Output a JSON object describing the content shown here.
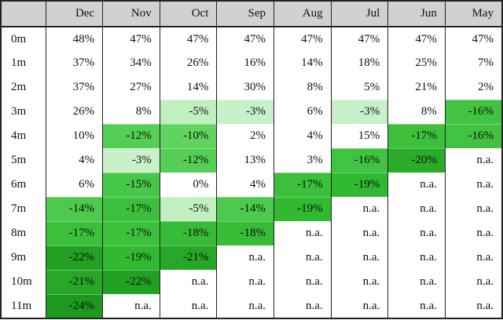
{
  "table": {
    "corner_label": "",
    "na_text": "n.a.",
    "value_suffix": "%",
    "header_bg": "#d1d1d1",
    "border_color": "#222222",
    "text_color": "#111111",
    "positive_bg": "#ffffff",
    "cell_colors": {
      "-3": "#c9f1c9",
      "-5": "#c0efc0",
      "-10": "#60d360",
      "-12": "#54ce54",
      "-14": "#4dca4d",
      "-15": "#47c747",
      "-16": "#41c341",
      "-17": "#3cc03c",
      "-18": "#36bc36",
      "-19": "#31b931",
      "-20": "#2aab2a",
      "-21": "#27a627",
      "-22": "#23a123",
      "-24": "#1d991d"
    }
  },
  "chart_data": {
    "type": "heatmap",
    "title": "",
    "columns": [
      "Dec",
      "Nov",
      "Oct",
      "Sep",
      "Aug",
      "Jul",
      "Jun",
      "May"
    ],
    "rows": [
      "0m",
      "1m",
      "2m",
      "3m",
      "4m",
      "5m",
      "6m",
      "7m",
      "8m",
      "9m",
      "10m",
      "11m"
    ],
    "values": [
      [
        48,
        47,
        47,
        47,
        47,
        47,
        47,
        47
      ],
      [
        37,
        34,
        26,
        16,
        14,
        18,
        25,
        7
      ],
      [
        37,
        27,
        14,
        30,
        8,
        5,
        21,
        2
      ],
      [
        26,
        8,
        -5,
        -3,
        6,
        -3,
        8,
        -16
      ],
      [
        10,
        -12,
        -10,
        2,
        4,
        15,
        -17,
        -16
      ],
      [
        4,
        -3,
        -12,
        13,
        3,
        -16,
        -20,
        null
      ],
      [
        6,
        -15,
        0,
        4,
        -17,
        -19,
        null,
        null
      ],
      [
        -14,
        -17,
        -5,
        -14,
        -19,
        null,
        null,
        null
      ],
      [
        -17,
        -17,
        -18,
        -18,
        null,
        null,
        null,
        null
      ],
      [
        -22,
        -19,
        -21,
        null,
        null,
        null,
        null,
        null
      ],
      [
        -21,
        -22,
        null,
        null,
        null,
        null,
        null,
        null
      ],
      [
        -24,
        null,
        null,
        null,
        null,
        null,
        null,
        null
      ]
    ],
    "cell_format": "percent",
    "na_text": "n.a.",
    "color_scale": {
      "zero_and_positive": "#ffffff",
      "negative_light": "#c9f1c9",
      "negative_dark": "#1d991d"
    },
    "legend": "none",
    "grid": "vertical column separators, no horizontal lines between body rows"
  }
}
